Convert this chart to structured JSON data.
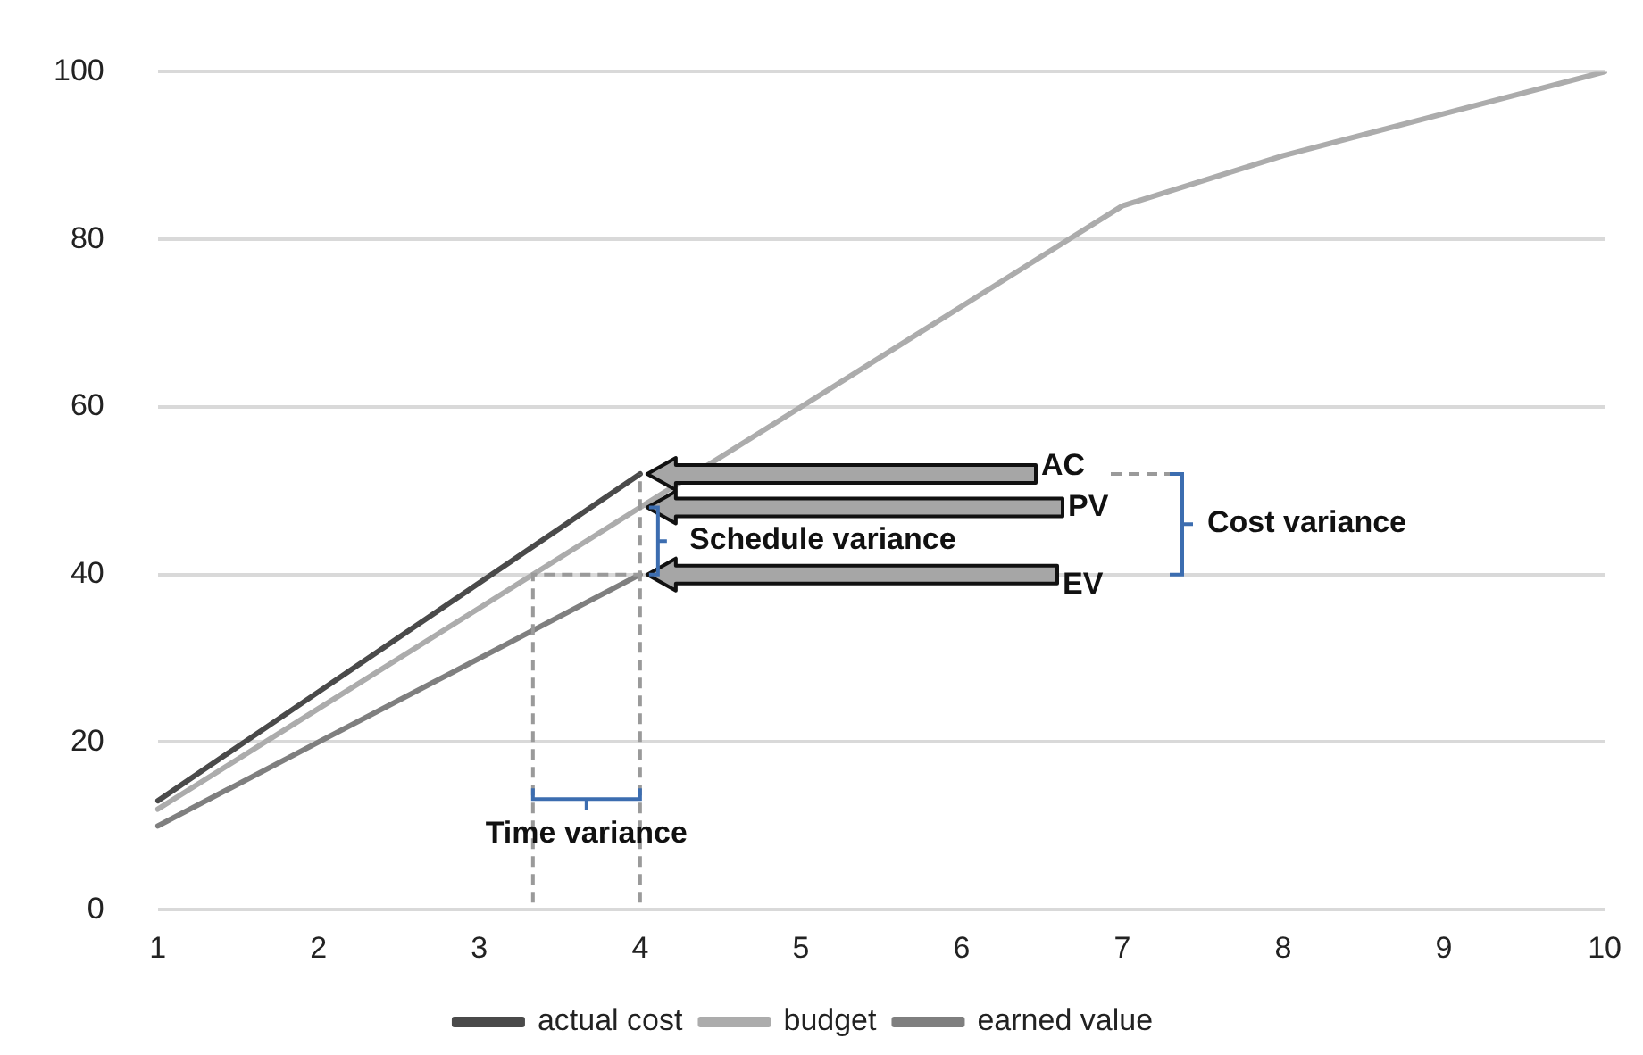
{
  "chart_data": {
    "type": "line",
    "categories": [
      "1",
      "2",
      "3",
      "4",
      "5",
      "6",
      "7",
      "8",
      "9",
      "10"
    ],
    "series": [
      {
        "name": "actual cost",
        "color": "#4a4a4a",
        "values": [
          13,
          26,
          39,
          52,
          null,
          null,
          null,
          null,
          null,
          null
        ]
      },
      {
        "name": "budget",
        "color": "#acacac",
        "values": [
          12,
          24,
          36,
          48,
          60,
          72,
          84,
          90,
          95,
          100
        ]
      },
      {
        "name": "earned value",
        "color": "#7f7f7f",
        "values": [
          10,
          20,
          30,
          40,
          null,
          null,
          null,
          null,
          null,
          null
        ]
      }
    ],
    "ylim": [
      0,
      100
    ],
    "yticks": [
      0,
      20,
      40,
      60,
      80,
      100
    ],
    "grid": "y",
    "legend": "bottom",
    "marker": "none",
    "line_style": "solid",
    "annotations": [
      "AC",
      "PV",
      "EV",
      "Schedule variance",
      "Cost variance",
      "Time variance"
    ]
  }
}
